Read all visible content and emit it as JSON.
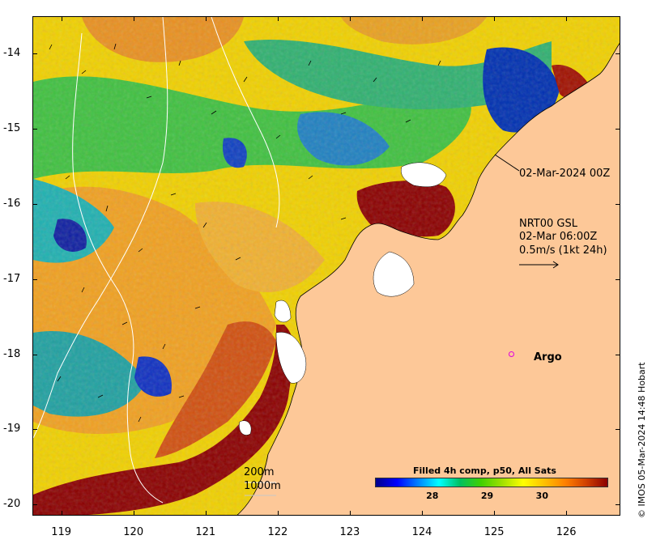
{
  "map": {
    "y_ticks": [
      {
        "label": "-14",
        "value": -14
      },
      {
        "label": "-15",
        "value": -15
      },
      {
        "label": "-16",
        "value": -16
      },
      {
        "label": "-17",
        "value": -17
      },
      {
        "label": "-18",
        "value": -18
      },
      {
        "label": "-19",
        "value": -19
      },
      {
        "label": "-20",
        "value": -20
      }
    ],
    "x_ticks": [
      {
        "label": "119",
        "value": 119
      },
      {
        "label": "120",
        "value": 120
      },
      {
        "label": "121",
        "value": 121
      },
      {
        "label": "122",
        "value": 122
      },
      {
        "label": "123",
        "value": 123
      },
      {
        "label": "124",
        "value": 124
      },
      {
        "label": "125",
        "value": 125
      },
      {
        "label": "126",
        "value": 126
      }
    ],
    "lon_range": [
      118.6,
      126.75
    ],
    "lat_range": [
      -20.15,
      -13.5
    ],
    "land_color": "#fdc898",
    "no_data_color": "#ffffff"
  },
  "annotations": {
    "track_time": "02-Mar-2024 00Z",
    "current_title": "NRT00 GSL",
    "current_time": "02-Mar 06:00Z",
    "current_scale": "0.5m/s (1kt 24h)",
    "contour_200": "200m",
    "contour_1000": "1000m"
  },
  "argo": {
    "label": "Argo",
    "marker_color": "#e000e0",
    "lon": 125.25,
    "lat": -18.0
  },
  "legend": {
    "title": "Filled 4h comp, p50, All Sats",
    "ticks": [
      {
        "label": "28",
        "value": 28
      },
      {
        "label": "29",
        "value": 29
      },
      {
        "label": "30",
        "value": 30
      }
    ],
    "range": [
      26.95,
      31.2
    ],
    "colors": [
      "#00008b",
      "#0000ff",
      "#0080ff",
      "#00ffff",
      "#00c060",
      "#40d000",
      "#a0e000",
      "#ffff00",
      "#ffc000",
      "#ff8000",
      "#d04000",
      "#8b0000"
    ]
  },
  "copyright": "© IMOS 05-Mar-2024 14:48 Hobart"
}
